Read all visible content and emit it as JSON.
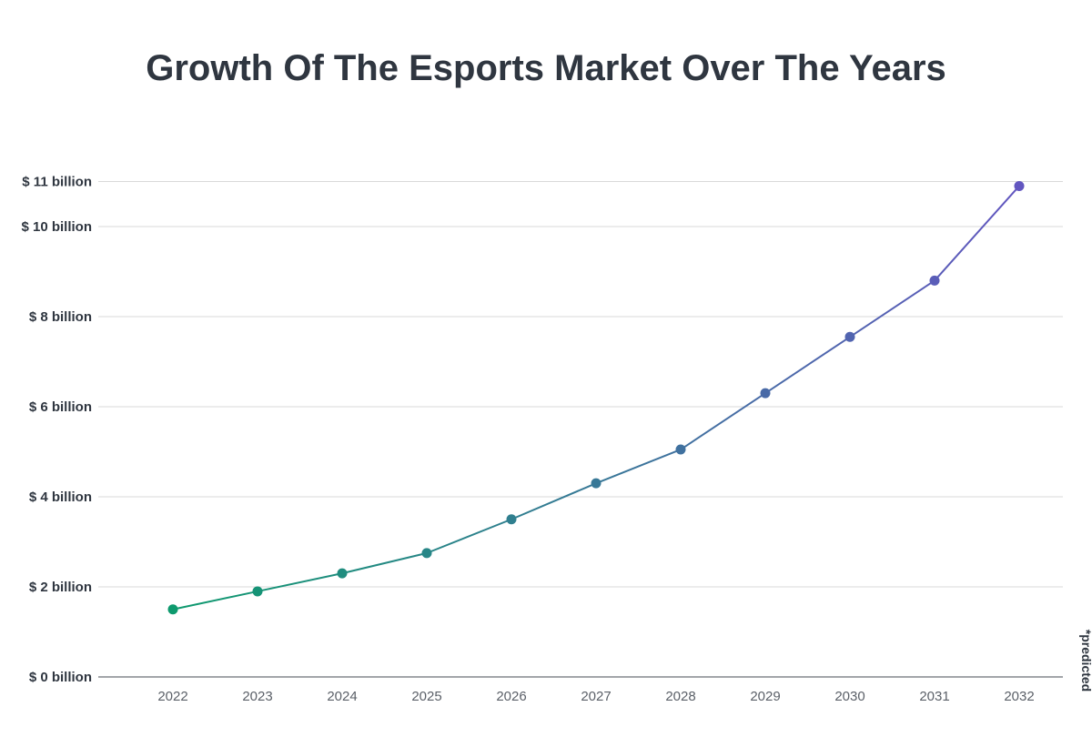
{
  "chart_data": {
    "type": "line",
    "title": "Growth Of The Esports Market Over The Years",
    "xlabel": "",
    "ylabel": "",
    "categories": [
      "2022",
      "2023",
      "2024",
      "2025",
      "2026",
      "2027",
      "2028",
      "2029",
      "2030",
      "2031",
      "2032"
    ],
    "values": [
      1.5,
      1.9,
      2.3,
      2.75,
      3.5,
      4.3,
      5.05,
      6.3,
      7.55,
      8.8,
      10.9
    ],
    "y_ticks": [
      0,
      2,
      4,
      6,
      8,
      10,
      11
    ],
    "y_tick_labels": [
      "$ 0 billion",
      "$ 2 billion",
      "$ 4 billion",
      "$ 6 billion",
      "$ 8 billion",
      "$ 10 billion",
      "$ 11 billion"
    ],
    "ylim": [
      0,
      12
    ],
    "grid": true,
    "annotation": "*predicted",
    "colors": {
      "start": "#0e9a6e",
      "end": "#6256c0",
      "grid": "#d9d9d9",
      "axis": "#6b6f76",
      "text": "#2f3640"
    }
  }
}
